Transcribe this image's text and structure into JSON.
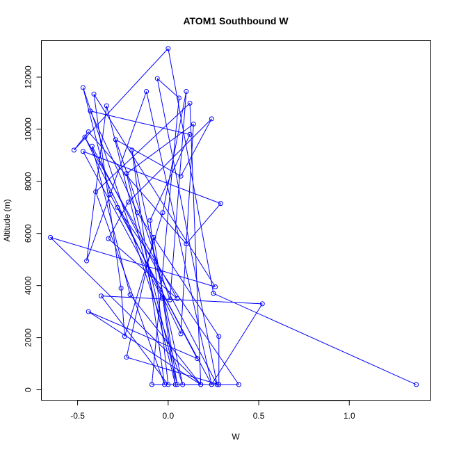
{
  "chart_data": {
    "type": "line",
    "title": "ATOM1 Southbound W",
    "xlabel": "W",
    "ylabel": "Altitude (m)",
    "xlim": [
      -0.7,
      1.45
    ],
    "ylim": [
      -400,
      13400
    ],
    "xticks": [
      -0.5,
      0.0,
      0.5,
      1.0
    ],
    "xtick_labels": [
      "-0.5",
      "0.0",
      "0.5",
      "1.0"
    ],
    "yticks": [
      0,
      2000,
      4000,
      6000,
      8000,
      10000,
      12000
    ],
    "ytick_labels": [
      "0",
      "2000",
      "4000",
      "6000",
      "8000",
      "10000",
      "12000"
    ],
    "markers": "open-circle",
    "color": "#0000ff",
    "series": [
      {
        "points": [
          [
            1.37,
            200
          ],
          [
            0.25,
            3700
          ],
          [
            0.0,
            13100
          ],
          [
            -0.52,
            9200
          ],
          [
            -0.44,
            9900
          ],
          [
            0.1,
            5600
          ],
          [
            0.29,
            7150
          ],
          [
            -0.47,
            9150
          ],
          [
            -0.03,
            3500
          ],
          [
            0.04,
            200
          ],
          [
            -0.34,
            10900
          ],
          [
            -0.45,
            4950
          ],
          [
            -0.12,
            11450
          ],
          [
            0.24,
            200
          ],
          [
            -0.32,
            7500
          ],
          [
            -0.47,
            11600
          ],
          [
            0.08,
            200
          ],
          [
            -0.2,
            9200
          ],
          [
            -0.02,
            200
          ],
          [
            -0.4,
            7600
          ],
          [
            0.12,
            11000
          ],
          [
            0.18,
            200
          ],
          [
            -0.44,
            3000
          ],
          [
            0.16,
            1200
          ],
          [
            -0.28,
            7000
          ],
          [
            0.39,
            200
          ],
          [
            -0.09,
            200
          ],
          [
            0.06,
            11200
          ],
          [
            -0.06,
            11950
          ],
          [
            0.27,
            200
          ],
          [
            -0.42,
            9350
          ],
          [
            -0.21,
            3650
          ],
          [
            0.18,
            200
          ],
          [
            -0.65,
            5850
          ],
          [
            0.26,
            3950
          ],
          [
            -0.41,
            11350
          ],
          [
            -0.26,
            3900
          ],
          [
            -0.24,
            2050
          ],
          [
            -0.03,
            6800
          ],
          [
            0.1,
            11450
          ],
          [
            0.01,
            3450
          ],
          [
            -0.29,
            9600
          ],
          [
            0.07,
            8200
          ],
          [
            0.24,
            10400
          ],
          [
            -0.22,
            7200
          ],
          [
            -0.33,
            5800
          ],
          [
            0.05,
            3500
          ],
          [
            -0.46,
            9700
          ],
          [
            0.07,
            2150
          ],
          [
            0.14,
            10200
          ],
          [
            -0.23,
            8300
          ],
          [
            0.05,
            200
          ],
          [
            -0.08,
            5850
          ],
          [
            -0.23,
            1250
          ],
          [
            0.28,
            200
          ],
          [
            0.28,
            2050
          ],
          [
            -0.17,
            6800
          ],
          [
            -0.43,
            10700
          ],
          [
            0.12,
            9800
          ],
          [
            -0.1,
            6500
          ],
          [
            0.0,
            200
          ],
          [
            -0.37,
            3600
          ],
          [
            0.52,
            3300
          ],
          [
            0.24,
            200
          ]
        ]
      }
    ],
    "grid": false
  }
}
